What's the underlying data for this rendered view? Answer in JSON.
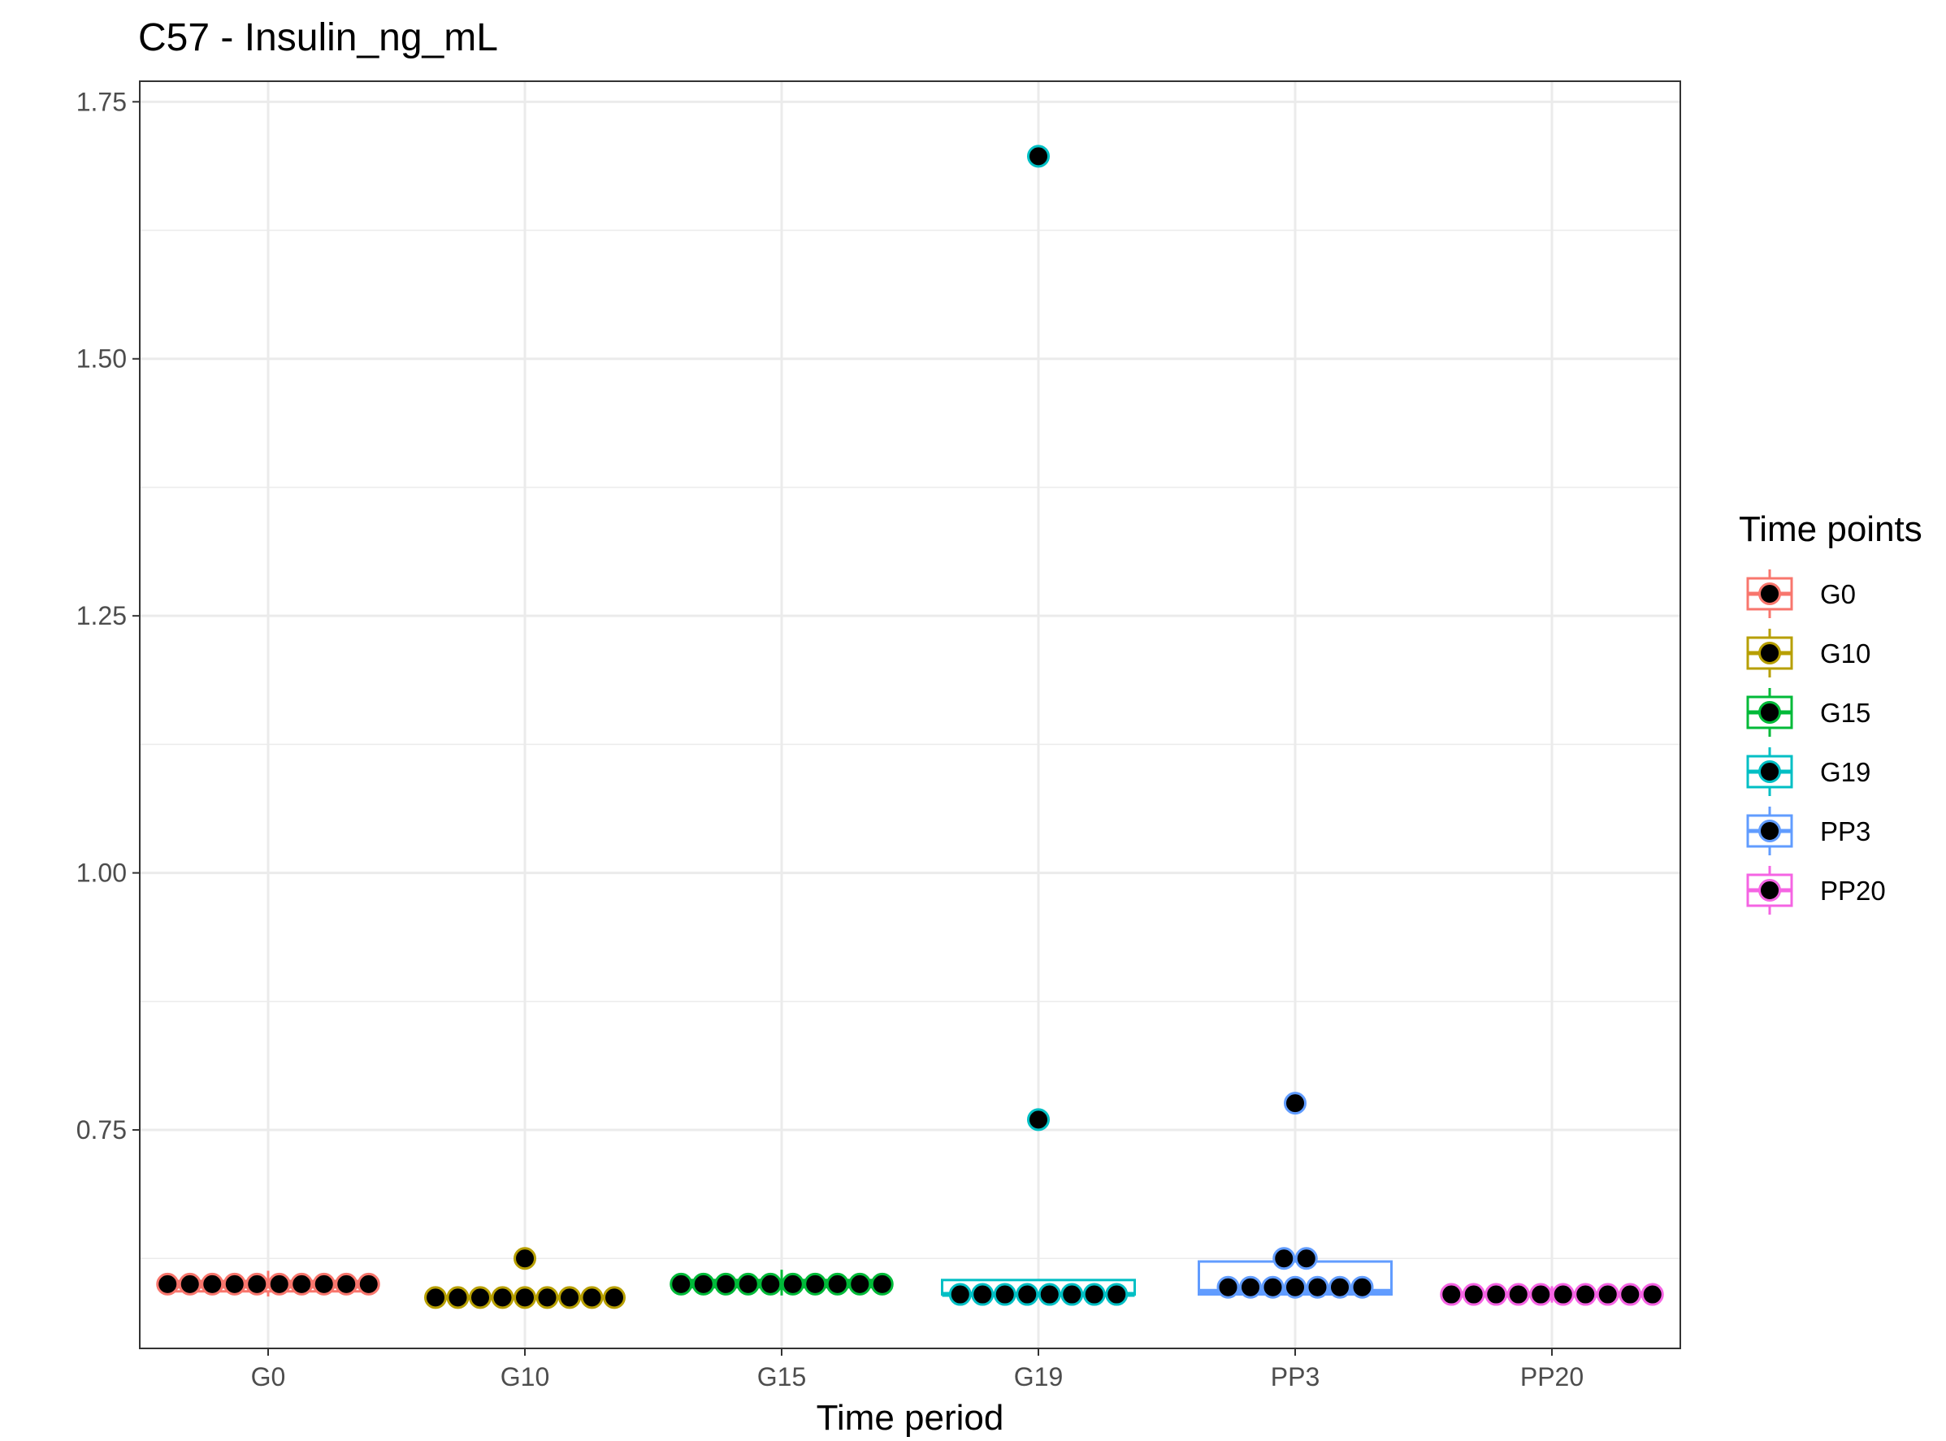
{
  "chart_data": {
    "type": "box",
    "title": "C57 - Insulin_ng_mL",
    "xlabel": "Time period",
    "ylabel": "",
    "categories": [
      "G0",
      "G10",
      "G15",
      "G19",
      "PP3",
      "PP20"
    ],
    "ylim": [
      0.5375,
      1.77
    ],
    "yticks": [
      0.75,
      1.0,
      1.25,
      1.5,
      1.75
    ],
    "ytick_labels": [
      "0.75",
      "1.00",
      "1.25",
      "1.50",
      "1.75"
    ],
    "grid": true,
    "legend": {
      "title": "Time points",
      "position": "right",
      "entries": [
        "G0",
        "G10",
        "G15",
        "G19",
        "PP3",
        "PP20"
      ]
    },
    "series": [
      {
        "name": "G0",
        "color": "#F8766D",
        "box": {
          "q1": 0.593,
          "median": 0.598,
          "q3": 0.603,
          "whisker_low": 0.588,
          "whisker_high": 0.613
        },
        "points": [
          0.6,
          0.6,
          0.6,
          0.6,
          0.6,
          0.6,
          0.6,
          0.6,
          0.6,
          0.6
        ]
      },
      {
        "name": "G10",
        "color": "#B79F00",
        "box": {
          "q1": 0.587,
          "median": 0.587,
          "q3": 0.588,
          "whisker_low": 0.587,
          "whisker_high": 0.589
        },
        "points": [
          0.625,
          0.587,
          0.587,
          0.587,
          0.587,
          0.587,
          0.587,
          0.587,
          0.587,
          0.587
        ]
      },
      {
        "name": "G15",
        "color": "#00BA38",
        "box": {
          "q1": 0.597,
          "median": 0.601,
          "q3": 0.604,
          "whisker_low": 0.589,
          "whisker_high": 0.614
        },
        "points": [
          0.6,
          0.6,
          0.6,
          0.6,
          0.6,
          0.6,
          0.6,
          0.6,
          0.6,
          0.6
        ]
      },
      {
        "name": "G19",
        "color": "#00BFC4",
        "box": {
          "q1": 0.59,
          "median": 0.59,
          "q3": 0.604,
          "whisker_low": 0.59,
          "whisker_high": 0.604
        },
        "points": [
          1.697,
          0.76,
          0.59,
          0.59,
          0.59,
          0.59,
          0.59,
          0.59,
          0.59,
          0.59
        ]
      },
      {
        "name": "PP3",
        "color": "#619CFF",
        "box": {
          "q1": 0.59,
          "median": 0.593,
          "q3": 0.622,
          "whisker_low": 0.589,
          "whisker_high": 0.625
        },
        "points": [
          0.776,
          0.625,
          0.625,
          0.597,
          0.597,
          0.597,
          0.597,
          0.597,
          0.597,
          0.597
        ]
      },
      {
        "name": "PP20",
        "color": "#F564E3",
        "box": {
          "q1": 0.588,
          "median": 0.59,
          "q3": 0.592,
          "whisker_low": 0.582,
          "whisker_high": 0.598
        },
        "points": [
          0.59,
          0.59,
          0.59,
          0.59,
          0.59,
          0.59,
          0.59,
          0.59,
          0.59,
          0.59
        ]
      }
    ]
  }
}
